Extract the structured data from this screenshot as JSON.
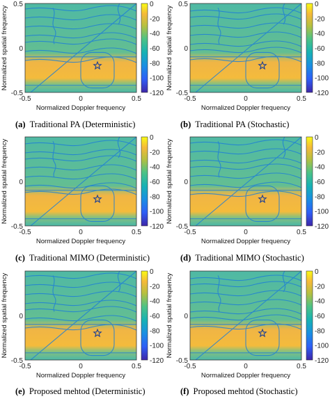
{
  "chart_data": [
    {
      "type": "heatmap",
      "panel_label": "(a)",
      "caption": "Traditional  PA (Deterministic)",
      "xlabel": "Normalized Doppler frequency",
      "ylabel": "Normalized spatial frequency",
      "xlim": [
        -0.5,
        0.5
      ],
      "ylim": [
        -0.5,
        0.5
      ],
      "xticks": [
        "-0.5",
        "0",
        "0.5"
      ],
      "yticks": [
        "0.5",
        "0",
        "-0.5"
      ],
      "colorbar": {
        "ticks": [
          "0",
          "-20",
          "-40",
          "-60",
          "-80",
          "-100",
          "-120"
        ],
        "range": [
          -120,
          0
        ]
      },
      "target_marker": {
        "symbol": "star",
        "x": 0.15,
        "y": -0.2
      },
      "colormap": "parula"
    },
    {
      "type": "heatmap",
      "panel_label": "(b)",
      "caption": "Traditional  PA (Stochastic)",
      "xlabel": "Normalized Doppler frequency",
      "ylabel": "Normalized spatial frequency",
      "xlim": [
        -0.5,
        0.5
      ],
      "ylim": [
        -0.5,
        0.5
      ],
      "xticks": [
        "-0.5",
        "0",
        "0.5"
      ],
      "yticks": [
        "0.5",
        "0",
        "-0.5"
      ],
      "colorbar": {
        "ticks": [
          "0",
          "-20",
          "-40",
          "-60",
          "-80",
          "-100",
          "-120"
        ],
        "range": [
          -120,
          0
        ]
      },
      "target_marker": {
        "symbol": "star",
        "x": 0.15,
        "y": -0.2
      },
      "colormap": "parula"
    },
    {
      "type": "heatmap",
      "panel_label": "(c)",
      "caption": "Traditional MIMO (Deterministic)",
      "xlabel": "Normalized Doppler frequency",
      "ylabel": "Normalized spatial frequency",
      "xlim": [
        -0.5,
        0.5
      ],
      "ylim": [
        -0.5,
        0.5
      ],
      "xticks": [
        "-0.5",
        "0",
        "0.5"
      ],
      "yticks": [
        "",
        "0",
        "-0.5"
      ],
      "colorbar": {
        "ticks": [
          "0",
          "-20",
          "-40",
          "-60",
          "-80",
          "-100",
          "-120"
        ],
        "range": [
          -120,
          0
        ]
      },
      "target_marker": {
        "symbol": "star",
        "x": 0.15,
        "y": -0.2
      },
      "colormap": "parula"
    },
    {
      "type": "heatmap",
      "panel_label": "(d)",
      "caption": "Traditional MIMO (Stochastic)",
      "xlabel": "Normalized Doppler frequency",
      "ylabel": "Normalized spatial frequency",
      "xlim": [
        -0.5,
        0.5
      ],
      "ylim": [
        -0.5,
        0.5
      ],
      "xticks": [
        "-0.5",
        "0",
        "0.5"
      ],
      "yticks": [
        "",
        "0",
        "-0.5"
      ],
      "colorbar": {
        "ticks": [
          "0",
          "-20",
          "-40",
          "-60",
          "-80",
          "-100",
          "-120"
        ],
        "range": [
          -120,
          0
        ]
      },
      "target_marker": {
        "symbol": "star",
        "x": 0.15,
        "y": -0.2
      },
      "colormap": "parula"
    },
    {
      "type": "heatmap",
      "panel_label": "(e)",
      "caption": "Proposed mehtod (Deterministic)",
      "xlabel": "Normalized Doppler frequency",
      "ylabel": "Normalized spatial frequency",
      "xlim": [
        -0.5,
        0.5
      ],
      "ylim": [
        -0.5,
        0.5
      ],
      "xticks": [
        "-0.5",
        "0",
        "0.5"
      ],
      "yticks": [
        "",
        "0",
        "-0.5"
      ],
      "colorbar": {
        "ticks": [
          "0",
          "-20",
          "-40",
          "-60",
          "-80",
          "-100",
          "-120"
        ],
        "range": [
          -120,
          0
        ]
      },
      "target_marker": {
        "symbol": "star",
        "x": 0.15,
        "y": -0.2
      },
      "colormap": "parula"
    },
    {
      "type": "heatmap",
      "panel_label": "(f)",
      "caption": "Proposed mehtod (Stochastic)",
      "xlabel": "Normalized Doppler frequency",
      "ylabel": "Normalized spatial frequency",
      "xlim": [
        -0.5,
        0.5
      ],
      "ylim": [
        -0.5,
        0.5
      ],
      "xticks": [
        "-0.5",
        "0",
        "0.5"
      ],
      "yticks": [
        "",
        "0",
        "-0.5"
      ],
      "colorbar": {
        "ticks": [
          "0",
          "-20",
          "-40",
          "-60",
          "-80",
          "-100",
          "-120"
        ],
        "range": [
          -120,
          0
        ]
      },
      "target_marker": {
        "symbol": "star",
        "x": 0.15,
        "y": -0.2
      },
      "colormap": "parula"
    }
  ]
}
